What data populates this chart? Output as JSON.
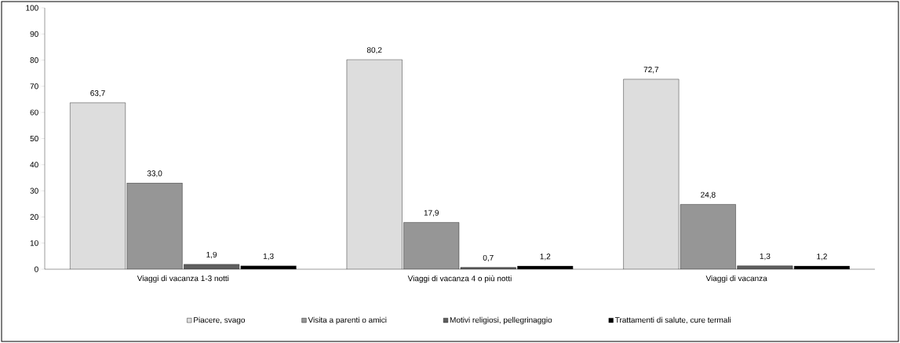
{
  "chart_data": {
    "type": "bar",
    "categories": [
      "Viaggi di vacanza 1-3 notti",
      "Viaggi di vacanza 4 o più notti",
      "Viaggi di vacanza"
    ],
    "series": [
      {
        "name": "Piacere, svago",
        "color": "#dddddd",
        "values": [
          63.7,
          80.2,
          72.7
        ],
        "value_labels": [
          "63,7",
          "80,2",
          "72,7"
        ]
      },
      {
        "name": "Visita a parenti o amici",
        "color": "#969696",
        "values": [
          33.0,
          17.9,
          24.8
        ],
        "value_labels": [
          "33,0",
          "17,9",
          "24,8"
        ]
      },
      {
        "name": "Motivi religiosi, pellegrinaggio",
        "color": "#5f5f5f",
        "values": [
          1.9,
          0.7,
          1.3
        ],
        "value_labels": [
          "1,9",
          "0,7",
          "1,3"
        ]
      },
      {
        "name": "Trattamenti di salute, cure termali",
        "color": "#000000",
        "values": [
          1.3,
          1.2,
          1.2
        ],
        "value_labels": [
          "1,3",
          "1,2",
          "1,2"
        ]
      }
    ],
    "ylim": [
      0,
      100
    ],
    "yticks": [
      0,
      10,
      20,
      30,
      40,
      50,
      60,
      70,
      80,
      90,
      100
    ],
    "grid": false,
    "legend": "bottom"
  }
}
